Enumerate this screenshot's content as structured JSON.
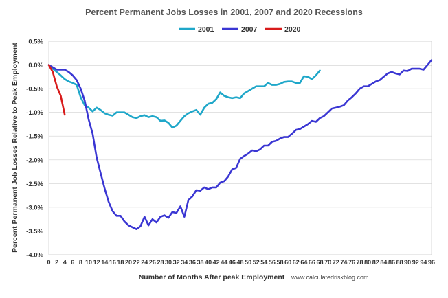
{
  "chart_data": {
    "type": "line",
    "title": "Percent Permanent Jobs Losses in 2001, 2007 and 2020 Recessions",
    "xlabel": "Number of Months After peak Employment",
    "ylabel": "Percent Permanent Job Losses Relative to Peak Employment",
    "source_note": "www.calculatedriskblog.com",
    "xlim": [
      0,
      96
    ],
    "ylim": [
      -4.0,
      0.5
    ],
    "x_ticks": [
      0,
      2,
      4,
      6,
      8,
      10,
      12,
      14,
      16,
      18,
      20,
      22,
      24,
      26,
      28,
      30,
      32,
      34,
      36,
      38,
      40,
      42,
      44,
      46,
      48,
      50,
      52,
      54,
      56,
      58,
      60,
      62,
      64,
      66,
      68,
      70,
      72,
      74,
      76,
      78,
      80,
      82,
      84,
      86,
      88,
      90,
      92,
      94,
      96
    ],
    "y_ticks": [
      0.5,
      0.0,
      -0.5,
      -1.0,
      -1.5,
      -2.0,
      -2.5,
      -3.0,
      -3.5,
      -4.0
    ],
    "y_tick_labels": [
      "0.5%",
      "0.0%",
      "-0.5%",
      "-1.0%",
      "-1.5%",
      "-2.0%",
      "-2.5%",
      "-3.0%",
      "-3.5%",
      "-4.0%"
    ],
    "grid": "horizontal",
    "legend_position": "top",
    "zero_line": true,
    "series": [
      {
        "name": "2001",
        "color": "#1fa7c9",
        "x": [
          0,
          1,
          2,
          3,
          4,
          5,
          6,
          7,
          8,
          9,
          10,
          11,
          12,
          13,
          14,
          15,
          16,
          17,
          18,
          19,
          20,
          21,
          22,
          23,
          24,
          25,
          26,
          27,
          28,
          29,
          30,
          31,
          32,
          33,
          34,
          35,
          36,
          37,
          38,
          39,
          40,
          41,
          42,
          43,
          44,
          45,
          46,
          47,
          48,
          49,
          50,
          51,
          52,
          53,
          54,
          55,
          56,
          57,
          58,
          59,
          60,
          61,
          62,
          63,
          64,
          65,
          66,
          67,
          68
        ],
        "y": [
          0,
          -0.08,
          -0.15,
          -0.22,
          -0.3,
          -0.35,
          -0.38,
          -0.42,
          -0.68,
          -0.85,
          -0.9,
          -0.98,
          -0.9,
          -0.95,
          -1.02,
          -1.05,
          -1.07,
          -1.0,
          -1.0,
          -1.0,
          -1.05,
          -1.1,
          -1.12,
          -1.08,
          -1.06,
          -1.1,
          -1.08,
          -1.1,
          -1.18,
          -1.17,
          -1.22,
          -1.32,
          -1.28,
          -1.18,
          -1.08,
          -1.02,
          -0.98,
          -0.95,
          -1.05,
          -0.9,
          -0.82,
          -0.8,
          -0.72,
          -0.58,
          -0.65,
          -0.68,
          -0.7,
          -0.68,
          -0.7,
          -0.6,
          -0.55,
          -0.5,
          -0.45,
          -0.45,
          -0.45,
          -0.38,
          -0.42,
          -0.42,
          -0.4,
          -0.36,
          -0.35,
          -0.35,
          -0.38,
          -0.38,
          -0.24,
          -0.25,
          -0.3,
          -0.22,
          -0.12
        ]
      },
      {
        "name": "2007",
        "color": "#3a36d3",
        "x": [
          0,
          1,
          2,
          3,
          4,
          5,
          6,
          7,
          8,
          9,
          10,
          11,
          12,
          13,
          14,
          15,
          16,
          17,
          18,
          19,
          20,
          21,
          22,
          23,
          24,
          25,
          26,
          27,
          28,
          29,
          30,
          31,
          32,
          33,
          34,
          35,
          36,
          37,
          38,
          39,
          40,
          41,
          42,
          43,
          44,
          45,
          46,
          47,
          48,
          49,
          50,
          51,
          52,
          53,
          54,
          55,
          56,
          57,
          58,
          59,
          60,
          61,
          62,
          63,
          64,
          65,
          66,
          67,
          68,
          69,
          70,
          71,
          72,
          73,
          74,
          75,
          76,
          77,
          78,
          79,
          80,
          81,
          82,
          83,
          84,
          85,
          86,
          87,
          88,
          89,
          90,
          91,
          92,
          93,
          94,
          95,
          96
        ],
        "y": [
          0,
          -0.05,
          -0.1,
          -0.1,
          -0.1,
          -0.15,
          -0.22,
          -0.32,
          -0.5,
          -0.75,
          -1.15,
          -1.45,
          -1.95,
          -2.28,
          -2.6,
          -2.88,
          -3.08,
          -3.18,
          -3.18,
          -3.3,
          -3.38,
          -3.42,
          -3.46,
          -3.4,
          -3.2,
          -3.38,
          -3.25,
          -3.32,
          -3.2,
          -3.17,
          -3.22,
          -3.1,
          -3.12,
          -2.98,
          -3.2,
          -2.85,
          -2.77,
          -2.64,
          -2.65,
          -2.58,
          -2.62,
          -2.58,
          -2.58,
          -2.48,
          -2.45,
          -2.35,
          -2.2,
          -2.17,
          -1.98,
          -1.92,
          -1.87,
          -1.8,
          -1.82,
          -1.78,
          -1.7,
          -1.7,
          -1.62,
          -1.6,
          -1.55,
          -1.52,
          -1.52,
          -1.45,
          -1.37,
          -1.35,
          -1.3,
          -1.25,
          -1.18,
          -1.2,
          -1.12,
          -1.08,
          -1.0,
          -0.92,
          -0.9,
          -0.88,
          -0.85,
          -0.75,
          -0.68,
          -0.6,
          -0.5,
          -0.45,
          -0.45,
          -0.4,
          -0.35,
          -0.32,
          -0.25,
          -0.18,
          -0.15,
          -0.18,
          -0.2,
          -0.12,
          -0.13,
          -0.08,
          -0.08,
          -0.08,
          -0.1,
          0.0,
          0.1
        ]
      },
      {
        "name": "2020",
        "color": "#d81b1b",
        "x": [
          0,
          1,
          2,
          3,
          4
        ],
        "y": [
          0,
          -0.15,
          -0.45,
          -0.65,
          -1.05
        ]
      }
    ]
  }
}
